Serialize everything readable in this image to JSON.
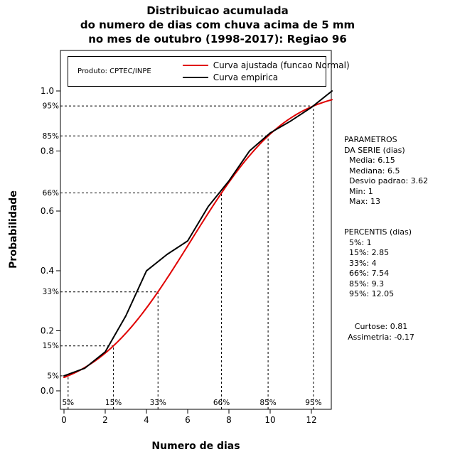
{
  "title": {
    "line1": "Distribuicao acumulada",
    "line2": "do numero de dias com chuva acima de 5 mm",
    "line3": "no mes de outubro (1998-2017): Regiao 96"
  },
  "axes": {
    "xlabel": "Numero de dias",
    "ylabel": "Probabilidade"
  },
  "legend": {
    "product": "Produto: CPTEC/INPE",
    "entries": [
      {
        "label": "Curva ajustada (funcao Normal)",
        "color": "#e00000"
      },
      {
        "label": "Curva empirica",
        "color": "#000000"
      }
    ]
  },
  "panel": {
    "params_heading1": "PARAMETROS",
    "params_heading2": "DA SERIE (dias)",
    "params_items": [
      "Media: 6.15",
      "Mediana: 6.5",
      "Desvio padrao: 3.62",
      "Min: 1",
      "Max: 13"
    ],
    "percentis_heading": "PERCENTIS (dias)",
    "percentis_items": [
      "5%: 1",
      "15%: 2.85",
      "33%: 4",
      "66%: 7.54",
      "85%: 9.3",
      "95%: 12.05"
    ],
    "moments": [
      "Curtose: 0.81",
      "Assimetria: -0.17"
    ]
  },
  "chart_data": {
    "type": "line",
    "title": "Distribuicao acumulada do numero de dias com chuva acima de 5 mm no mes de outubro (1998-2017): Regiao 96",
    "xlabel": "Numero de dias",
    "ylabel": "Probabilidade",
    "xlim": [
      0,
      13
    ],
    "ylim": [
      0,
      1
    ],
    "x_ticks": [
      0,
      2,
      4,
      6,
      8,
      10,
      12
    ],
    "y_ticks": [
      0.0,
      0.2,
      0.4,
      0.6,
      0.8,
      1.0
    ],
    "grid": false,
    "legend_position": "top-inside",
    "series": [
      {
        "name": "Curva ajustada (funcao Normal)",
        "model": "normal_cdf",
        "color": "#e00000",
        "mean": 6.15,
        "sd": 3.62,
        "x_range": [
          0,
          13
        ]
      },
      {
        "name": "Curva empirica",
        "model": "points",
        "color": "#000000",
        "points": [
          [
            0,
            0.05
          ],
          [
            1,
            0.075
          ],
          [
            2,
            0.13
          ],
          [
            3,
            0.25
          ],
          [
            4,
            0.4
          ],
          [
            5,
            0.455
          ],
          [
            6,
            0.5
          ],
          [
            7,
            0.615
          ],
          [
            8,
            0.7
          ],
          [
            9,
            0.8
          ],
          [
            10,
            0.86
          ],
          [
            11,
            0.9
          ],
          [
            12,
            0.945
          ],
          [
            13,
            1.0
          ]
        ]
      }
    ],
    "percentile_guides": [
      {
        "label": "5%",
        "p": 0.05,
        "x": 0.2
      },
      {
        "label": "15%",
        "p": 0.15,
        "x": 2.4
      },
      {
        "label": "33%",
        "p": 0.33,
        "x": 4.56
      },
      {
        "label": "66%",
        "p": 0.66,
        "x": 7.64
      },
      {
        "label": "85%",
        "p": 0.85,
        "x": 9.9
      },
      {
        "label": "95%",
        "p": 0.95,
        "x": 12.1
      }
    ]
  }
}
